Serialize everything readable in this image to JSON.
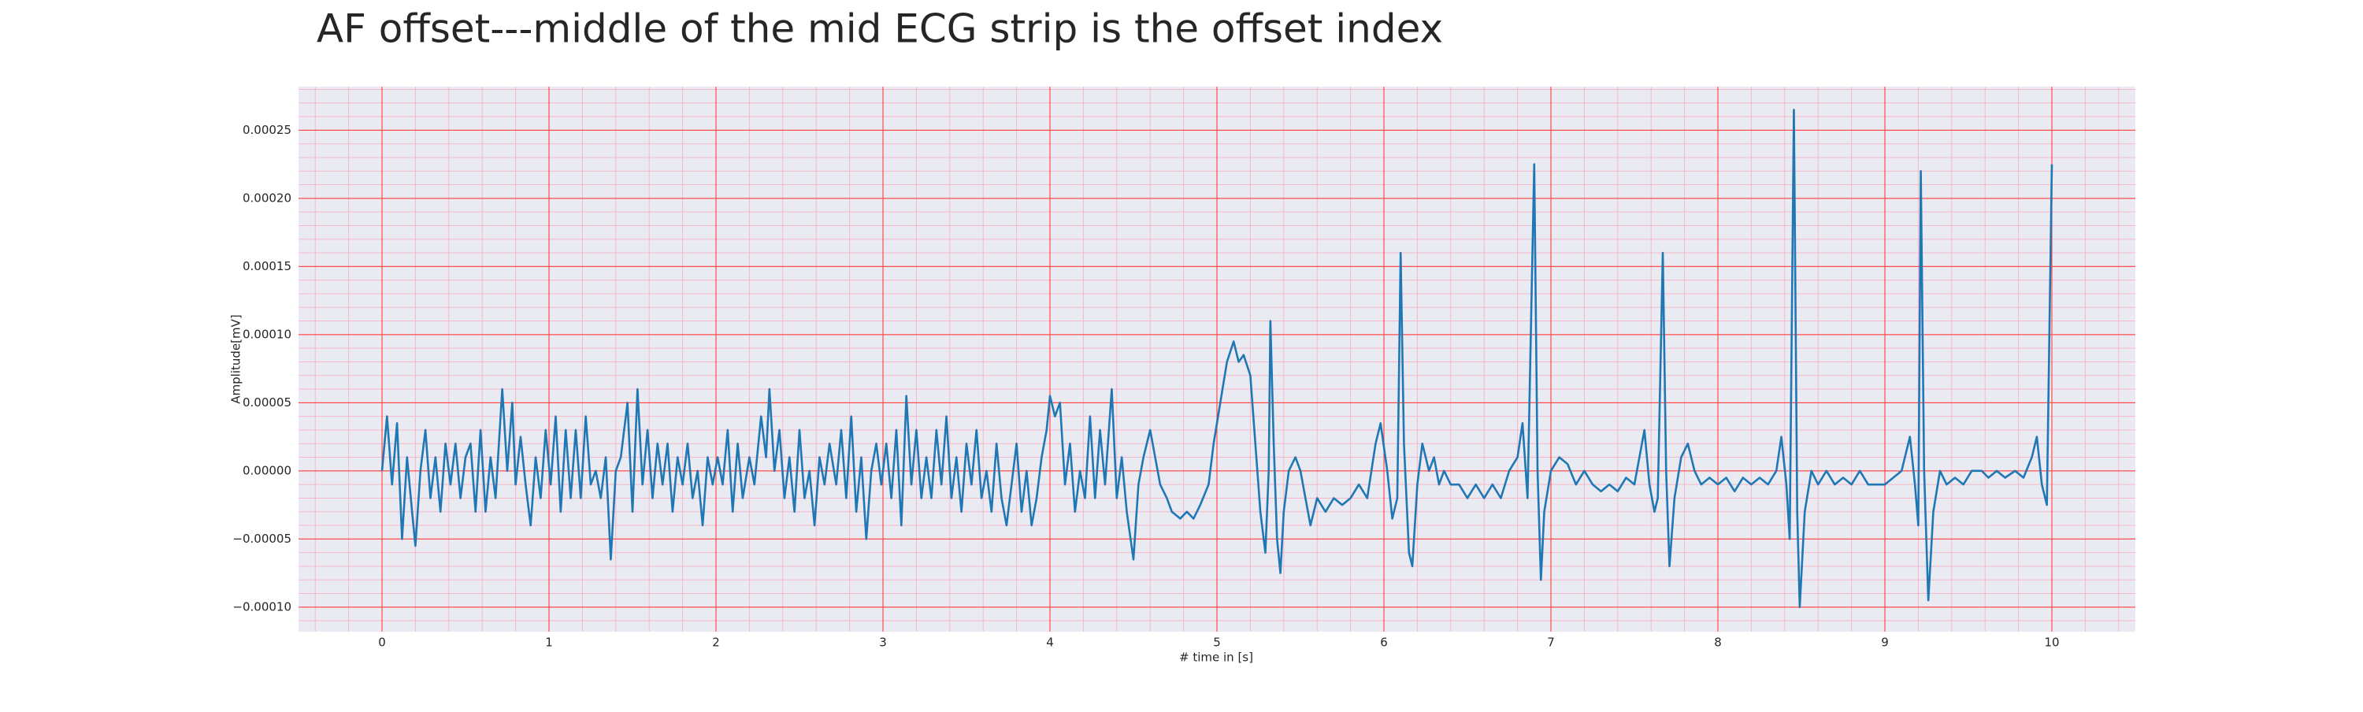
{
  "chart_data": {
    "type": "line",
    "title": "AF offset---middle of the mid ECG strip is the offset index",
    "xlabel": "# time in [s]",
    "ylabel": "Amplitude[mV]",
    "color": "#1f77b4",
    "background": "#eaeaf2",
    "grid": true,
    "grid_color": "#ff4d4d",
    "minor_grid": true,
    "minor_grid_color": "#f5b8c8",
    "minor_divisions": 5,
    "xlim": [
      -0.5,
      10.5
    ],
    "ylim": [
      -0.000118,
      0.000282
    ],
    "xticks": [
      0,
      1,
      2,
      3,
      4,
      5,
      6,
      7,
      8,
      9,
      10
    ],
    "yticks": [
      {
        "value": -0.0001,
        "label": "−0.00010"
      },
      {
        "value": -5e-05,
        "label": "−0.00005"
      },
      {
        "value": 0,
        "label": "0.00000"
      },
      {
        "value": 5e-05,
        "label": "0.00005"
      },
      {
        "value": 0.0001,
        "label": "0.00010"
      },
      {
        "value": 0.00015,
        "label": "0.00015"
      },
      {
        "value": 0.0002,
        "label": "0.00020"
      },
      {
        "value": 0.00025,
        "label": "0.00025"
      }
    ],
    "x": [
      0,
      0.03,
      0.06,
      0.09,
      0.12,
      0.15,
      0.18,
      0.2,
      0.23,
      0.26,
      0.29,
      0.32,
      0.35,
      0.38,
      0.41,
      0.44,
      0.47,
      0.5,
      0.53,
      0.56,
      0.59,
      0.62,
      0.65,
      0.68,
      0.72,
      0.75,
      0.78,
      0.8,
      0.83,
      0.86,
      0.89,
      0.92,
      0.95,
      0.98,
      1.01,
      1.04,
      1.07,
      1.1,
      1.13,
      1.16,
      1.19,
      1.22,
      1.25,
      1.28,
      1.31,
      1.34,
      1.37,
      1.4,
      1.43,
      1.47,
      1.5,
      1.53,
      1.56,
      1.59,
      1.62,
      1.65,
      1.68,
      1.71,
      1.74,
      1.77,
      1.8,
      1.83,
      1.86,
      1.89,
      1.92,
      1.95,
      1.98,
      2.01,
      2.04,
      2.07,
      2.1,
      2.13,
      2.16,
      2.2,
      2.23,
      2.27,
      2.3,
      2.32,
      2.35,
      2.38,
      2.41,
      2.44,
      2.47,
      2.5,
      2.53,
      2.56,
      2.59,
      2.62,
      2.65,
      2.68,
      2.72,
      2.75,
      2.78,
      2.81,
      2.84,
      2.87,
      2.9,
      2.93,
      2.96,
      2.99,
      3.02,
      3.05,
      3.08,
      3.11,
      3.14,
      3.17,
      3.2,
      3.23,
      3.26,
      3.29,
      3.32,
      3.35,
      3.38,
      3.41,
      3.44,
      3.47,
      3.5,
      3.53,
      3.56,
      3.59,
      3.62,
      3.65,
      3.68,
      3.71,
      3.74,
      3.77,
      3.8,
      3.83,
      3.86,
      3.89,
      3.92,
      3.95,
      3.98,
      4.0,
      4.03,
      4.06,
      4.09,
      4.12,
      4.15,
      4.18,
      4.21,
      4.24,
      4.27,
      4.3,
      4.33,
      4.37,
      4.4,
      4.43,
      4.46,
      4.5,
      4.53,
      4.56,
      4.6,
      4.63,
      4.66,
      4.7,
      4.73,
      4.78,
      4.82,
      4.86,
      4.9,
      4.95,
      4.98,
      5.02,
      5.06,
      5.1,
      5.13,
      5.16,
      5.2,
      5.23,
      5.26,
      5.29,
      5.31,
      5.32,
      5.34,
      5.36,
      5.38,
      5.4,
      5.43,
      5.47,
      5.5,
      5.53,
      5.56,
      5.6,
      5.65,
      5.7,
      5.75,
      5.8,
      5.85,
      5.9,
      5.95,
      5.98,
      6.02,
      6.05,
      6.08,
      6.1,
      6.12,
      6.15,
      6.17,
      6.2,
      6.23,
      6.27,
      6.3,
      6.33,
      6.36,
      6.4,
      6.45,
      6.5,
      6.55,
      6.6,
      6.65,
      6.7,
      6.75,
      6.8,
      6.83,
      6.86,
      6.9,
      6.92,
      6.94,
      6.96,
      7.0,
      7.05,
      7.1,
      7.15,
      7.2,
      7.25,
      7.3,
      7.35,
      7.4,
      7.45,
      7.5,
      7.53,
      7.56,
      7.59,
      7.62,
      7.64,
      7.67,
      7.69,
      7.71,
      7.74,
      7.78,
      7.82,
      7.86,
      7.9,
      7.95,
      8.0,
      8.05,
      8.1,
      8.15,
      8.2,
      8.25,
      8.3,
      8.35,
      8.38,
      8.41,
      8.43,
      8.455,
      8.475,
      8.49,
      8.52,
      8.56,
      8.6,
      8.65,
      8.7,
      8.75,
      8.8,
      8.85,
      8.9,
      9.0,
      9.05,
      9.1,
      9.15,
      9.18,
      9.2,
      9.215,
      9.235,
      9.26,
      9.29,
      9.33,
      9.37,
      9.42,
      9.47,
      9.52,
      9.58,
      9.62,
      9.67,
      9.72,
      9.78,
      9.83,
      9.88,
      9.91,
      9.94,
      9.97,
      10.0
    ],
    "values": [
      0,
      4e-05,
      -1e-05,
      3.5e-05,
      -5e-05,
      1e-05,
      -3e-05,
      -5.5e-05,
      0,
      3e-05,
      -2e-05,
      1e-05,
      -3e-05,
      2e-05,
      -1e-05,
      2e-05,
      -2e-05,
      1e-05,
      2e-05,
      -3e-05,
      3e-05,
      -3e-05,
      1e-05,
      -2e-05,
      6e-05,
      0,
      5e-05,
      -1e-05,
      2.5e-05,
      -1e-05,
      -4e-05,
      1e-05,
      -2e-05,
      3e-05,
      -1e-05,
      4e-05,
      -3e-05,
      3e-05,
      -2e-05,
      3e-05,
      -2e-05,
      4e-05,
      -1e-05,
      0,
      -2e-05,
      1e-05,
      -6.5e-05,
      0,
      1e-05,
      5e-05,
      -3e-05,
      6e-05,
      -1e-05,
      3e-05,
      -2e-05,
      2e-05,
      -1e-05,
      2e-05,
      -3e-05,
      1e-05,
      -1e-05,
      2e-05,
      -2e-05,
      0,
      -4e-05,
      1e-05,
      -1e-05,
      1e-05,
      -1e-05,
      3e-05,
      -3e-05,
      2e-05,
      -2e-05,
      1e-05,
      -1e-05,
      4e-05,
      1e-05,
      6e-05,
      0,
      3e-05,
      -2e-05,
      1e-05,
      -3e-05,
      3e-05,
      -2e-05,
      0,
      -4e-05,
      1e-05,
      -1e-05,
      2e-05,
      -1e-05,
      3e-05,
      -2e-05,
      4e-05,
      -3e-05,
      1e-05,
      -5e-05,
      0,
      2e-05,
      -1e-05,
      2e-05,
      -2e-05,
      3e-05,
      -4e-05,
      5.5e-05,
      -1e-05,
      3e-05,
      -2e-05,
      1e-05,
      -2e-05,
      3e-05,
      -1e-05,
      4e-05,
      -2e-05,
      1e-05,
      -3e-05,
      2e-05,
      -1e-05,
      3e-05,
      -2e-05,
      0,
      -3e-05,
      2e-05,
      -2e-05,
      -4e-05,
      -1e-05,
      2e-05,
      -3e-05,
      0,
      -4e-05,
      -2e-05,
      1e-05,
      3e-05,
      5.5e-05,
      4e-05,
      5e-05,
      -1e-05,
      2e-05,
      -3e-05,
      0,
      -2e-05,
      4e-05,
      -2e-05,
      3e-05,
      -1e-05,
      6e-05,
      -2e-05,
      1e-05,
      -3e-05,
      -6.5e-05,
      -1e-05,
      1e-05,
      3e-05,
      1e-05,
      -1e-05,
      -2e-05,
      -3e-05,
      -3.5e-05,
      -3e-05,
      -3.5e-05,
      -2.5e-05,
      -1e-05,
      2e-05,
      5e-05,
      8e-05,
      9.5e-05,
      8e-05,
      8.5e-05,
      7e-05,
      2e-05,
      -3e-05,
      -6e-05,
      0,
      0.00011,
      2e-05,
      -5e-05,
      -7.5e-05,
      -3e-05,
      0,
      1e-05,
      0,
      -2e-05,
      -4e-05,
      -2e-05,
      -3e-05,
      -2e-05,
      -2.5e-05,
      -2e-05,
      -1e-05,
      -2e-05,
      2e-05,
      3.5e-05,
      0,
      -3.5e-05,
      -2e-05,
      0.00016,
      2e-05,
      -6e-05,
      -7e-05,
      -1e-05,
      2e-05,
      0,
      1e-05,
      -1e-05,
      0,
      -1e-05,
      -1e-05,
      -2e-05,
      -1e-05,
      -2e-05,
      -1e-05,
      -2e-05,
      0,
      1e-05,
      3.5e-05,
      -2e-05,
      0.000225,
      0,
      -8e-05,
      -3e-05,
      0,
      1e-05,
      5e-06,
      -1e-05,
      0,
      -1e-05,
      -1.5e-05,
      -1e-05,
      -1.5e-05,
      -5e-06,
      -1e-05,
      1e-05,
      3e-05,
      -1e-05,
      -3e-05,
      -2e-05,
      0.00016,
      0,
      -7e-05,
      -2e-05,
      1e-05,
      2e-05,
      0,
      -1e-05,
      -5e-06,
      -1e-05,
      -5e-06,
      -1.5e-05,
      -5e-06,
      -1e-05,
      -5e-06,
      -1e-05,
      0,
      2.5e-05,
      -1e-05,
      -5e-05,
      0.000265,
      -3e-05,
      -0.0001,
      -3e-05,
      0,
      -1e-05,
      0,
      -1e-05,
      -5e-06,
      -1e-05,
      0,
      -1e-05,
      -1e-05,
      -5e-06,
      0,
      2.5e-05,
      -1e-05,
      -4e-05,
      0.00022,
      0,
      -9.5e-05,
      -3e-05,
      0,
      -1e-05,
      -5e-06,
      -1e-05,
      0,
      0,
      -5e-06,
      0,
      -5e-06,
      0,
      -5e-06,
      1e-05,
      2.5e-05,
      -1e-05,
      -2.5e-05,
      0.000225
    ]
  }
}
